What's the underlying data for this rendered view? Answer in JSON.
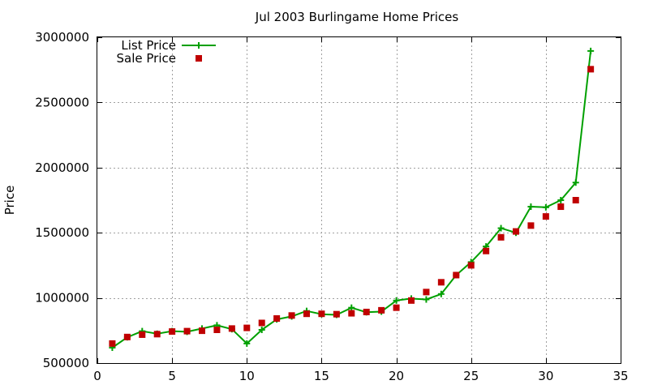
{
  "chart_data": {
    "type": "line",
    "title": "Jul 2003 Burlingame Home Prices",
    "xlabel": "",
    "ylabel": "Price",
    "xlim": [
      0,
      35
    ],
    "ylim": [
      500000,
      3000000
    ],
    "x_ticks": [
      0,
      5,
      10,
      15,
      20,
      25,
      30,
      35
    ],
    "y_ticks": [
      500000,
      1000000,
      1500000,
      2000000,
      2500000,
      3000000
    ],
    "x_tick_labels": [
      "0",
      "5",
      "10",
      "15",
      "20",
      "25",
      "30",
      "35"
    ],
    "y_tick_labels": [
      "500000",
      "1000000",
      "1500000",
      "2000000",
      "2500000",
      "3000000"
    ],
    "grid": true,
    "legend_position": "top-left",
    "x": [
      1,
      2,
      3,
      4,
      5,
      6,
      7,
      8,
      9,
      10,
      11,
      12,
      13,
      14,
      15,
      16,
      17,
      18,
      19,
      20,
      21,
      22,
      23,
      24,
      25,
      26,
      27,
      28,
      29,
      30,
      31,
      32,
      33
    ],
    "series": [
      {
        "name": "List Price",
        "style": "linespoints",
        "marker": "plus",
        "color": "#00a000",
        "values": [
          618000,
          698000,
          745000,
          725000,
          745000,
          740000,
          765000,
          790000,
          760000,
          650000,
          755000,
          835000,
          858000,
          900000,
          875000,
          870000,
          925000,
          890000,
          895000,
          980000,
          995000,
          988000,
          1030000,
          1175000,
          1275000,
          1395000,
          1535000,
          1500000,
          1700000,
          1695000,
          1750000,
          1885000,
          2895000
        ]
      },
      {
        "name": "Sale Price",
        "style": "points",
        "marker": "square",
        "color": "#c00000",
        "values": [
          650000,
          700000,
          718000,
          722000,
          742000,
          745000,
          748000,
          755000,
          765000,
          770000,
          808000,
          842000,
          865000,
          878000,
          878000,
          875000,
          882000,
          892000,
          905000,
          925000,
          980000,
          1045000,
          1120000,
          1175000,
          1250000,
          1360000,
          1465000,
          1510000,
          1555000,
          1625000,
          1700000,
          1750000,
          2755000
        ]
      }
    ]
  }
}
